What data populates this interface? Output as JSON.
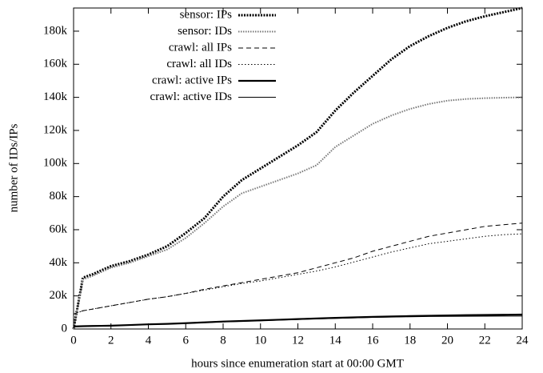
{
  "chart_data": {
    "type": "line",
    "x_label": "hours since enumeration start at 00:00 GMT",
    "y_label": "number of IDs/IPs",
    "x": [
      0,
      0.5,
      1,
      2,
      3,
      4,
      5,
      6,
      7,
      8,
      9,
      10,
      11,
      12,
      13,
      14,
      15,
      16,
      17,
      18,
      19,
      20,
      21,
      22,
      23,
      24
    ],
    "series": [
      {
        "name": "sensor: IPs",
        "color": "#000000",
        "width": 3,
        "dash": "2,1.5",
        "values": [
          0,
          31000,
          33000,
          38000,
          41000,
          45000,
          50000,
          58000,
          67000,
          80000,
          90000,
          97000,
          104000,
          111000,
          119000,
          132000,
          143000,
          153000,
          163000,
          171000,
          177000,
          182000,
          186000,
          189000,
          191500,
          194000
        ]
      },
      {
        "name": "sensor: IDs",
        "color": "#777777",
        "width": 2,
        "dash": "1.5,1.5",
        "values": [
          0,
          30000,
          32000,
          37000,
          40000,
          44000,
          48000,
          55000,
          64000,
          74000,
          82000,
          86000,
          90000,
          94000,
          99000,
          110000,
          117000,
          124000,
          129000,
          133000,
          136000,
          138000,
          139000,
          139500,
          139800,
          140000
        ]
      },
      {
        "name": "crawl: all IPs",
        "color": "#000000",
        "width": 1,
        "dash": "6,4",
        "values": [
          9000,
          11000,
          12000,
          14000,
          16000,
          18000,
          19500,
          21500,
          24000,
          26000,
          28000,
          30000,
          32000,
          34000,
          37000,
          40000,
          43000,
          47000,
          50000,
          53000,
          56000,
          58000,
          60000,
          62000,
          63000,
          64000
        ]
      },
      {
        "name": "crawl: all IDs",
        "color": "#000000",
        "width": 1,
        "dash": "1.5,2.5",
        "values": [
          9000,
          11000,
          12000,
          14000,
          16000,
          18000,
          19500,
          21500,
          23500,
          25500,
          27500,
          29000,
          31000,
          33000,
          35000,
          37500,
          40500,
          43500,
          46500,
          49000,
          51500,
          53000,
          54500,
          56000,
          57000,
          57500
        ]
      },
      {
        "name": "crawl: active IPs",
        "color": "#000000",
        "width": 2.2,
        "dash": "none",
        "values": [
          1500,
          1700,
          1800,
          2000,
          2400,
          2800,
          3100,
          3500,
          4000,
          4500,
          4850,
          5200,
          5600,
          6000,
          6350,
          6700,
          7000,
          7300,
          7550,
          7800,
          8000,
          8200,
          8350,
          8500,
          8600,
          8700
        ]
      },
      {
        "name": "crawl: active IDs",
        "color": "#000000",
        "width": 1,
        "dash": "none",
        "values": [
          1500,
          1650,
          1750,
          1950,
          2300,
          2700,
          3000,
          3400,
          3850,
          4300,
          4650,
          5000,
          5400,
          5750,
          6100,
          6400,
          6700,
          7000,
          7200,
          7400,
          7550,
          7650,
          7700,
          7750,
          7780,
          7800
        ]
      }
    ],
    "xlim": [
      0,
      24
    ],
    "xticks": [
      0,
      2,
      4,
      6,
      8,
      10,
      12,
      14,
      16,
      18,
      20,
      22,
      24
    ],
    "ylim": [
      0,
      194000
    ],
    "yticks": [
      0,
      {
        "value": 20000,
        "label": "20k"
      },
      {
        "value": 40000,
        "label": "40k"
      },
      {
        "value": 60000,
        "label": "60k"
      },
      {
        "value": 80000,
        "label": "80k"
      },
      {
        "value": 100000,
        "label": "100k"
      },
      {
        "value": 120000,
        "label": "120k"
      },
      {
        "value": 140000,
        "label": "140k"
      },
      {
        "value": 160000,
        "label": "160k"
      },
      {
        "value": 180000,
        "label": "180k"
      }
    ],
    "grid": false,
    "legend": "upper-left"
  }
}
